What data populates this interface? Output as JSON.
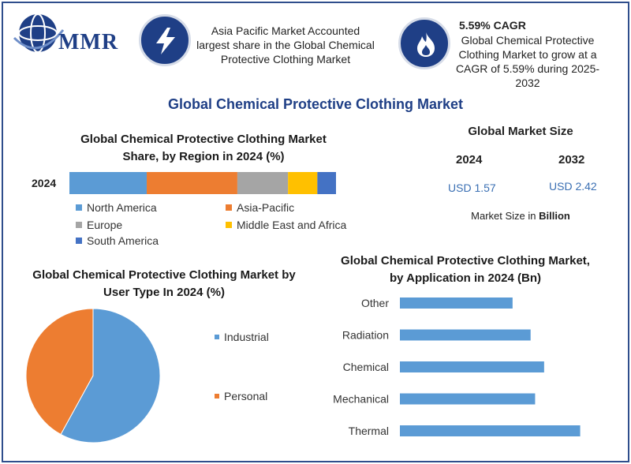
{
  "logo": {
    "text": "MMR"
  },
  "header": {
    "asia_text": "Asia Pacific Market Accounted largest share in the Global Chemical Protective Clothing Market",
    "cagr_title": "5.59% CAGR",
    "cagr_text": "Global Chemical Protective Clothing Market to grow at a CAGR of 5.59% during 2025-2032"
  },
  "icons": {
    "left": "lightning-icon",
    "right": "flame-icon"
  },
  "main_title": "Global Chemical Protective Clothing Market",
  "market_size": {
    "title": "Global Market Size",
    "year1": "2024",
    "year2": "2032",
    "value1": "USD 1.57",
    "value2": "USD 2.42",
    "note_prefix": "Market Size in ",
    "note_bold": "Billion"
  },
  "colors": {
    "brand": "#1f3f86",
    "north_america": "#5b9bd5",
    "asia_pacific": "#ed7d31",
    "europe": "#a5a5a5",
    "middle_east_africa": "#ffc000",
    "south_america": "#4472c4"
  },
  "chart_data": [
    {
      "type": "bar",
      "orientation": "horizontal-stacked",
      "title": "Global Chemical Protective Clothing Market Share, by Region in 2024 (%)",
      "categories": [
        "2024"
      ],
      "series": [
        {
          "name": "North America",
          "values": [
            29
          ]
        },
        {
          "name": "Asia-Pacific",
          "values": [
            34
          ]
        },
        {
          "name": "Europe",
          "values": [
            19
          ]
        },
        {
          "name": "Middle East and Africa",
          "values": [
            11
          ]
        },
        {
          "name": "South America",
          "values": [
            7
          ]
        }
      ],
      "legend": "bottom"
    },
    {
      "type": "pie",
      "title": "Global Chemical Protective Clothing Market by User Type In 2024 (%)",
      "labels": [
        "Industrial",
        "Personal"
      ],
      "values": [
        58,
        42
      ],
      "legend": "right"
    },
    {
      "type": "bar",
      "orientation": "horizontal",
      "title": "Global Chemical Protective Clothing Market, by Application in 2024 (Bn)",
      "categories": [
        "Other",
        "Radiation",
        "Chemical",
        "Mechanical",
        "Thermal"
      ],
      "values": [
        0.25,
        0.29,
        0.32,
        0.3,
        0.4
      ],
      "xlim": [
        0,
        0.42
      ]
    }
  ]
}
